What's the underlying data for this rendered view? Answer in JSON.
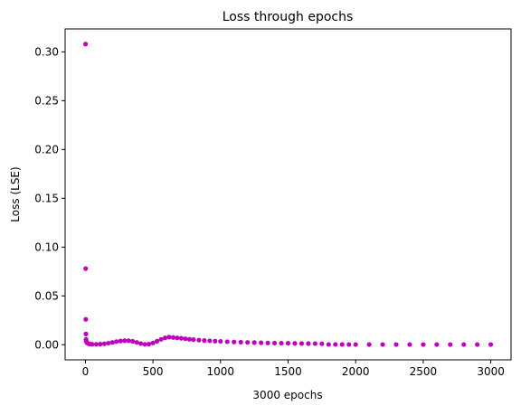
{
  "chart_data": {
    "type": "scatter",
    "title": "Loss through epochs",
    "xlabel": "3000 epochs",
    "ylabel": "Loss (LSE)",
    "xlim": [
      -150,
      3150
    ],
    "ylim": [
      -0.0155,
      0.3235
    ],
    "xticks": [
      0,
      500,
      1000,
      1500,
      2000,
      2500,
      3000
    ],
    "xtick_labels": [
      "0",
      "500",
      "1000",
      "1500",
      "2000",
      "2500",
      "3000"
    ],
    "yticks": [
      0.0,
      0.05,
      0.1,
      0.15,
      0.2,
      0.25,
      0.3
    ],
    "ytick_labels": [
      "0.00",
      "0.05",
      "0.10",
      "0.15",
      "0.20",
      "0.25",
      "0.30"
    ],
    "grid": false,
    "marker_color": "#bf00bf",
    "series": [
      {
        "name": "loss",
        "points": [
          [
            1,
            0.308
          ],
          [
            2,
            0.078
          ],
          [
            3,
            0.026
          ],
          [
            4,
            0.011
          ],
          [
            5,
            0.0055
          ],
          [
            6,
            0.004
          ],
          [
            8,
            0.003
          ],
          [
            12,
            0.002
          ],
          [
            20,
            0.0012
          ],
          [
            30,
            0.0008
          ],
          [
            50,
            0.0005
          ],
          [
            80,
            0.0004
          ],
          [
            110,
            0.0006
          ],
          [
            140,
            0.001
          ],
          [
            170,
            0.0016
          ],
          [
            200,
            0.0024
          ],
          [
            230,
            0.0032
          ],
          [
            260,
            0.0038
          ],
          [
            290,
            0.0042
          ],
          [
            320,
            0.0041
          ],
          [
            350,
            0.0035
          ],
          [
            380,
            0.0024
          ],
          [
            410,
            0.0012
          ],
          [
            440,
            0.0004
          ],
          [
            470,
            0.0006
          ],
          [
            500,
            0.0018
          ],
          [
            530,
            0.0036
          ],
          [
            560,
            0.0055
          ],
          [
            590,
            0.007
          ],
          [
            620,
            0.0078
          ],
          [
            650,
            0.0074
          ],
          [
            680,
            0.007
          ],
          [
            710,
            0.0066
          ],
          [
            740,
            0.0061
          ],
          [
            770,
            0.0056
          ],
          [
            800,
            0.0052
          ],
          [
            840,
            0.0047
          ],
          [
            880,
            0.0043
          ],
          [
            920,
            0.004
          ],
          [
            960,
            0.0037
          ],
          [
            1000,
            0.0034
          ],
          [
            1050,
            0.0031
          ],
          [
            1100,
            0.0028
          ],
          [
            1150,
            0.0026
          ],
          [
            1200,
            0.0024
          ],
          [
            1250,
            0.0022
          ],
          [
            1300,
            0.002
          ],
          [
            1350,
            0.0018
          ],
          [
            1400,
            0.0017
          ],
          [
            1450,
            0.0016
          ],
          [
            1500,
            0.0015
          ],
          [
            1550,
            0.0014
          ],
          [
            1600,
            0.0013
          ],
          [
            1650,
            0.0012
          ],
          [
            1700,
            0.0011
          ],
          [
            1750,
            0.001
          ],
          [
            1800,
            0.0003
          ],
          [
            1850,
            0.0003
          ],
          [
            1900,
            0.0003
          ],
          [
            1950,
            0.0002
          ],
          [
            2000,
            0.0002
          ],
          [
            2100,
            0.0002
          ],
          [
            2200,
            0.0002
          ],
          [
            2300,
            0.0002
          ],
          [
            2400,
            0.0002
          ],
          [
            2500,
            0.0002
          ],
          [
            2600,
            0.0002
          ],
          [
            2700,
            0.0002
          ],
          [
            2800,
            0.0002
          ],
          [
            2900,
            0.0002
          ],
          [
            3000,
            0.0002
          ]
        ]
      }
    ]
  }
}
